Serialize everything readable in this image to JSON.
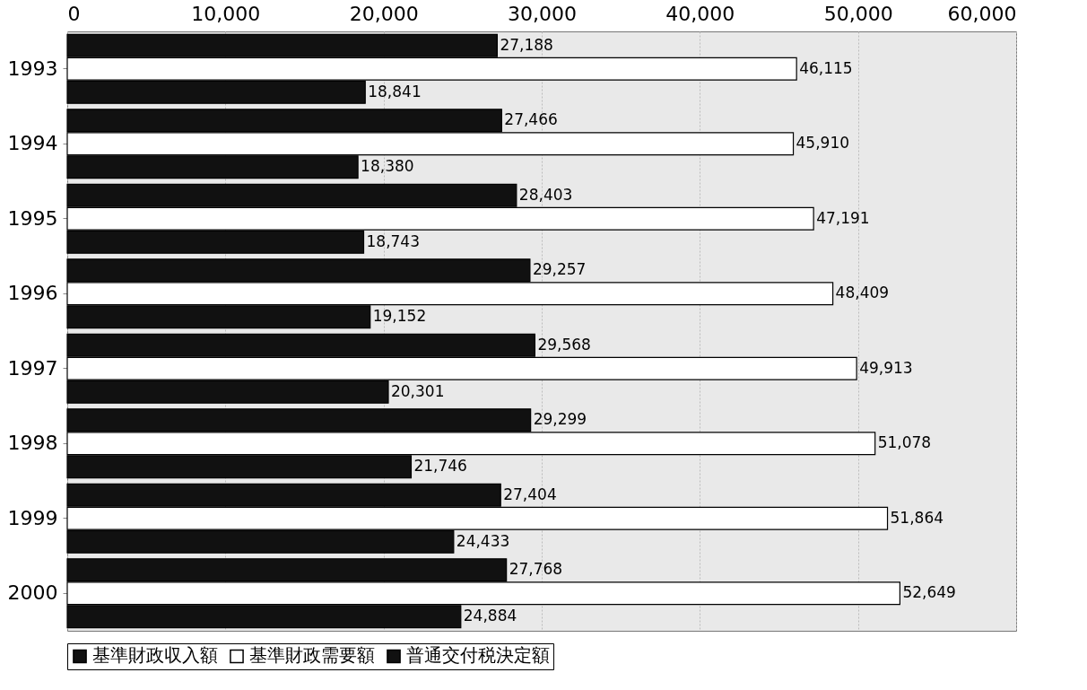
{
  "chart_data": {
    "type": "bar",
    "orientation": "horizontal",
    "categories": [
      "1993",
      "1994",
      "1995",
      "1996",
      "1997",
      "1998",
      "1999",
      "2000"
    ],
    "series": [
      {
        "name": "基準財政収入額",
        "color": "#111111",
        "values": [
          27188,
          27466,
          28403,
          29257,
          29568,
          29299,
          27404,
          27768
        ],
        "value_labels": [
          "27,188",
          "27,466",
          "28,403",
          "29,257",
          "29,568",
          "29,299",
          "27,404",
          "27,768"
        ]
      },
      {
        "name": "基準財政需要額",
        "color": "#ffffff",
        "values": [
          46115,
          45910,
          47191,
          48409,
          49913,
          51078,
          51864,
          52649
        ],
        "value_labels": [
          "46,115",
          "45,910",
          "47,191",
          "48,409",
          "49,913",
          "51,078",
          "51,864",
          "52,649"
        ]
      },
      {
        "name": "普通交付税決定額",
        "color": "#111111",
        "values": [
          18841,
          18380,
          18743,
          19152,
          20301,
          21746,
          24433,
          24884
        ],
        "value_labels": [
          "18,841",
          "18,380",
          "18,743",
          "19,152",
          "20,301",
          "21,746",
          "24,433",
          "24,884"
        ]
      }
    ],
    "xlim": [
      0,
      60000
    ],
    "xticks": [
      0,
      {
        "value": 10000,
        "label": "10,000"
      },
      {
        "value": 20000,
        "label": "20,000"
      },
      {
        "value": 30000,
        "label": "30,000"
      },
      {
        "value": 40000,
        "label": "40,000"
      },
      {
        "value": 50000,
        "label": "50,000"
      },
      {
        "value": 60000,
        "label": "60,000"
      }
    ],
    "grid": "x",
    "legend": "bottom"
  }
}
